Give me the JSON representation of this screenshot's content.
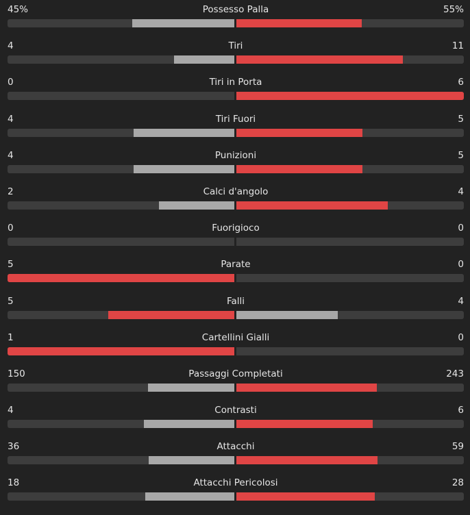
{
  "colors": {
    "leader": "#e04545",
    "trailer": "#a8a8a8",
    "track": "#3d3d3d"
  },
  "stats": [
    {
      "label": "Possesso Palla",
      "home": "45%",
      "away": "55%",
      "home_value": 45,
      "away_value": 55
    },
    {
      "label": "Tiri",
      "home": "4",
      "away": "11",
      "home_value": 4,
      "away_value": 11
    },
    {
      "label": "Tiri in Porta",
      "home": "0",
      "away": "6",
      "home_value": 0,
      "away_value": 6
    },
    {
      "label": "Tiri Fuori",
      "home": "4",
      "away": "5",
      "home_value": 4,
      "away_value": 5
    },
    {
      "label": "Punizioni",
      "home": "4",
      "away": "5",
      "home_value": 4,
      "away_value": 5
    },
    {
      "label": "Calci d'angolo",
      "home": "2",
      "away": "4",
      "home_value": 2,
      "away_value": 4
    },
    {
      "label": "Fuorigioco",
      "home": "0",
      "away": "0",
      "home_value": 0,
      "away_value": 0
    },
    {
      "label": "Parate",
      "home": "5",
      "away": "0",
      "home_value": 5,
      "away_value": 0
    },
    {
      "label": "Falli",
      "home": "5",
      "away": "4",
      "home_value": 5,
      "away_value": 4
    },
    {
      "label": "Cartellini Gialli",
      "home": "1",
      "away": "0",
      "home_value": 1,
      "away_value": 0
    },
    {
      "label": "Passaggi Completati",
      "home": "150",
      "away": "243",
      "home_value": 150,
      "away_value": 243
    },
    {
      "label": "Contrasti",
      "home": "4",
      "away": "6",
      "home_value": 4,
      "away_value": 6
    },
    {
      "label": "Attacchi",
      "home": "36",
      "away": "59",
      "home_value": 36,
      "away_value": 59
    },
    {
      "label": "Attacchi Pericolosi",
      "home": "18",
      "away": "28",
      "home_value": 18,
      "away_value": 28
    }
  ]
}
